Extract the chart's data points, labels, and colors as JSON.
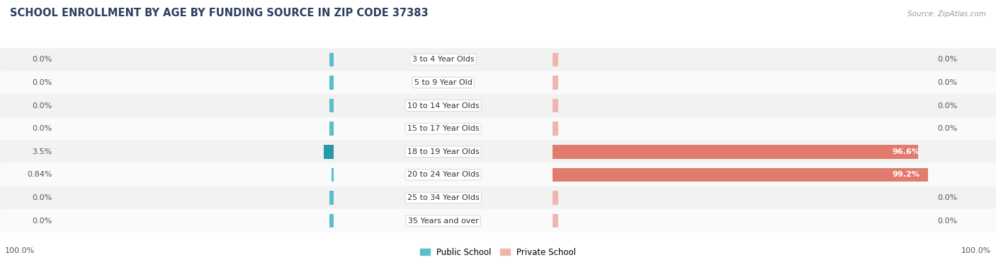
{
  "title": "SCHOOL ENROLLMENT BY AGE BY FUNDING SOURCE IN ZIP CODE 37383",
  "source": "Source: ZipAtlas.com",
  "categories": [
    "3 to 4 Year Olds",
    "5 to 9 Year Old",
    "10 to 14 Year Olds",
    "15 to 17 Year Olds",
    "18 to 19 Year Olds",
    "20 to 24 Year Olds",
    "25 to 34 Year Olds",
    "35 Years and over"
  ],
  "public_values": [
    0.0,
    0.0,
    0.0,
    0.0,
    3.5,
    0.84,
    0.0,
    0.0
  ],
  "private_values": [
    0.0,
    0.0,
    0.0,
    0.0,
    96.6,
    99.2,
    0.0,
    0.0
  ],
  "public_color": "#5abfc8",
  "public_color_dark": "#2899a8",
  "private_color": "#e07b6e",
  "private_color_light": "#f0b5ae",
  "row_colors": [
    "#f2f2f2",
    "#fafafa"
  ],
  "title_color": "#2d3f5e",
  "text_color": "#555555",
  "bottom_left_label": "100.0%",
  "bottom_right_label": "100.0%",
  "legend_public": "Public School",
  "legend_private": "Private School"
}
